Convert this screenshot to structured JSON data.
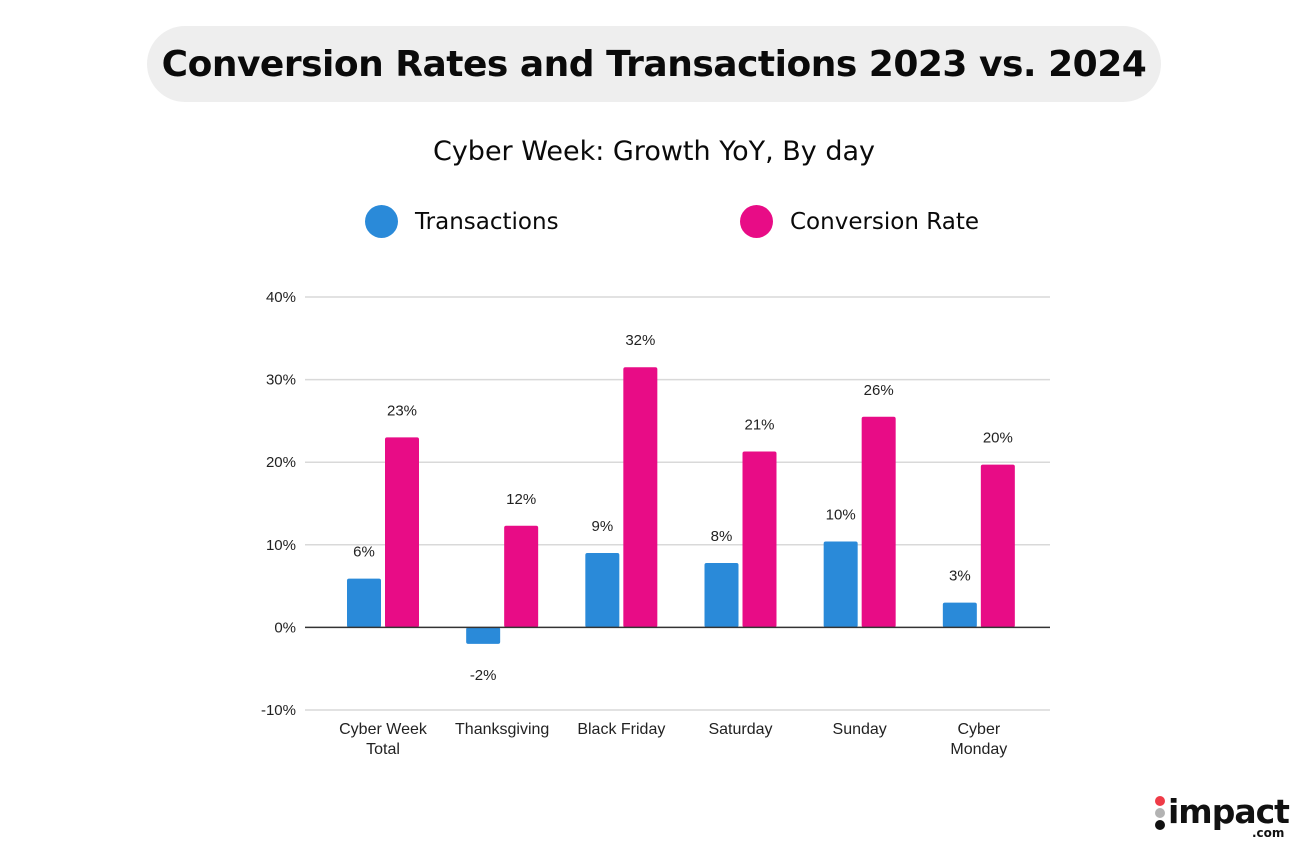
{
  "header": {
    "title": "Conversion Rates and Transactions 2023 vs. 2024"
  },
  "colors": {
    "transactions": "#2a8ad9",
    "conversion_rate": "#e80c86",
    "grid": "#d9d9d9",
    "zero_line": "#333333",
    "pill_bg": "#eeeeee"
  },
  "chart_data": {
    "type": "bar",
    "title": "Cyber Week: Growth YoY, By day",
    "xlabel": "",
    "ylabel": "",
    "ylim": [
      -0.1,
      0.4
    ],
    "yticks": [
      -0.1,
      0,
      0.1,
      0.2,
      0.3,
      0.4
    ],
    "ytick_labels": [
      "-10%",
      "0%",
      "10%",
      "20%",
      "30%",
      "40%"
    ],
    "grid": true,
    "legend_position": "top",
    "categories": [
      [
        "Cyber Week",
        "Total"
      ],
      [
        "Thanksgiving"
      ],
      [
        "Black Friday"
      ],
      [
        "Saturday"
      ],
      [
        "Sunday"
      ],
      [
        "Cyber",
        "Monday"
      ]
    ],
    "series": [
      {
        "name": "Transactions",
        "color": "#2a8ad9",
        "values": [
          0.059,
          -0.02,
          0.09,
          0.078,
          0.104,
          0.03
        ],
        "labels": [
          "6%",
          "-2%",
          "9%",
          "8%",
          "10%",
          "3%"
        ]
      },
      {
        "name": "Conversion Rate",
        "color": "#e80c86",
        "values": [
          0.23,
          0.123,
          0.315,
          0.213,
          0.255,
          0.197
        ],
        "labels": [
          "23%",
          "12%",
          "32%",
          "21%",
          "26%",
          "20%"
        ]
      }
    ]
  },
  "branding": {
    "logo_text": "impact",
    "logo_suffix": ".com",
    "dot_colors": [
      "#ef3b47",
      "#b3b3b3",
      "#111111"
    ]
  }
}
